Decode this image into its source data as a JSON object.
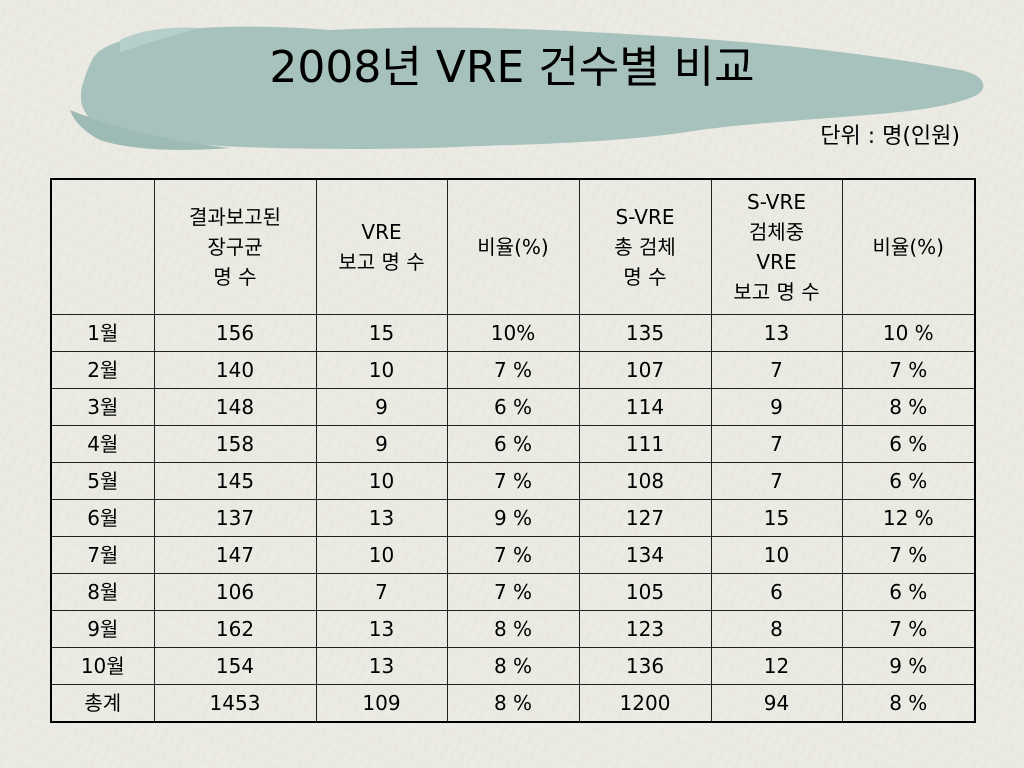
{
  "title": "2008년 VRE 건수별 비교",
  "unit_label": "단위 : 명(인원)",
  "colors": {
    "banner": "#9fbfb9",
    "background": "#ecebe3"
  },
  "table": {
    "headers": [
      [
        ""
      ],
      [
        "결과보고된",
        "장구균",
        "명 수"
      ],
      [
        "VRE",
        "보고 명 수"
      ],
      [
        "비율(%)"
      ],
      [
        "S-VRE",
        "총 검체",
        "명 수"
      ],
      [
        "S-VRE",
        "검체중",
        "VRE",
        "보고 명 수"
      ],
      [
        "비율(%)"
      ]
    ],
    "rows": [
      [
        "1월",
        "156",
        "15",
        "10%",
        "135",
        "13",
        "10 %"
      ],
      [
        "2월",
        "140",
        "10",
        "7 %",
        "107",
        "7",
        "7 %"
      ],
      [
        "3월",
        "148",
        "9",
        "6 %",
        "114",
        "9",
        "8 %"
      ],
      [
        "4월",
        "158",
        "9",
        "6 %",
        "111",
        "7",
        "6 %"
      ],
      [
        "5월",
        "145",
        "10",
        "7 %",
        "108",
        "7",
        "6 %"
      ],
      [
        "6월",
        "137",
        "13",
        "9 %",
        "127",
        "15",
        "12 %"
      ],
      [
        "7월",
        "147",
        "10",
        "7 %",
        "134",
        "10",
        "7 %"
      ],
      [
        "8월",
        "106",
        "7",
        "7 %",
        "105",
        "6",
        "6 %"
      ],
      [
        "9월",
        "162",
        "13",
        "8 %",
        "123",
        "8",
        "7 %"
      ],
      [
        "10월",
        "154",
        "13",
        "8 %",
        "136",
        "12",
        "9 %"
      ],
      [
        "총계",
        "1453",
        "109",
        "8 %",
        "1200",
        "94",
        "8 %"
      ]
    ]
  }
}
